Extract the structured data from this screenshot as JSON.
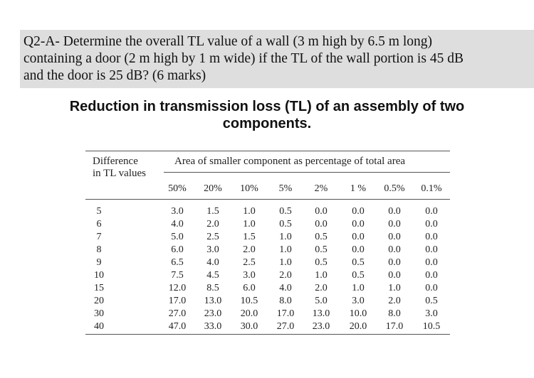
{
  "question": {
    "lines": [
      "Q2-A- Determine the overall TL value of a wall (3 m high by 6.5 m long)",
      "containing a door (2 m high by 1 m wide) if the TL of the wall portion is 45 dB",
      "and the door is 25 dB? (6 marks)"
    ]
  },
  "table_title": {
    "line1": "Reduction in transmission loss (TL) of an assembly of two",
    "line2": "components."
  },
  "table": {
    "row_header_line1": "Difference",
    "row_header_line2": "in TL values",
    "col_group_header": "Area of smaller component as percentage of total area",
    "columns": [
      "50%",
      "20%",
      "10%",
      "5%",
      "2%",
      "1 %",
      "0.5%",
      "0.1%"
    ],
    "rows": [
      {
        "diff": "5",
        "values": [
          "3.0",
          "1.5",
          "1.0",
          "0.5",
          "0.0",
          "0.0",
          "0.0",
          "0.0"
        ]
      },
      {
        "diff": "6",
        "values": [
          "4.0",
          "2.0",
          "1.0",
          "0.5",
          "0.0",
          "0.0",
          "0.0",
          "0.0"
        ]
      },
      {
        "diff": "7",
        "values": [
          "5.0",
          "2.5",
          "1.5",
          "1.0",
          "0.5",
          "0.0",
          "0.0",
          "0.0"
        ]
      },
      {
        "diff": "8",
        "values": [
          "6.0",
          "3.0",
          "2.0",
          "1.0",
          "0.5",
          "0.0",
          "0.0",
          "0.0"
        ]
      },
      {
        "diff": "9",
        "values": [
          "6.5",
          "4.0",
          "2.5",
          "1.0",
          "0.5",
          "0.5",
          "0.0",
          "0.0"
        ]
      },
      {
        "diff": "10",
        "values": [
          "7.5",
          "4.5",
          "3.0",
          "2.0",
          "1.0",
          "0.5",
          "0.0",
          "0.0"
        ]
      },
      {
        "diff": "15",
        "values": [
          "12.0",
          "8.5",
          "6.0",
          "4.0",
          "2.0",
          "1.0",
          "1.0",
          "0.0"
        ]
      },
      {
        "diff": "20",
        "values": [
          "17.0",
          "13.0",
          "10.5",
          "8.0",
          "5.0",
          "3.0",
          "2.0",
          "0.5"
        ]
      },
      {
        "diff": "30",
        "values": [
          "27.0",
          "23.0",
          "20.0",
          "17.0",
          "13.0",
          "10.0",
          "8.0",
          "3.0"
        ]
      },
      {
        "diff": "40",
        "values": [
          "47.0",
          "33.0",
          "30.0",
          "27.0",
          "23.0",
          "20.0",
          "17.0",
          "10.5"
        ]
      }
    ]
  }
}
